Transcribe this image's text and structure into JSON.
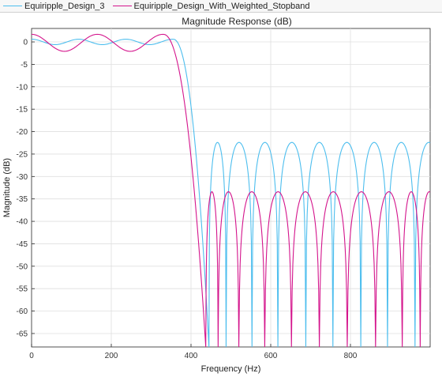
{
  "legend": {
    "items": [
      {
        "label": "Equiripple_Design_3",
        "color": "#4dbeee"
      },
      {
        "label": "Equiripple_Design_With_Weighted_Stopband",
        "color": "#d4148c"
      }
    ]
  },
  "chart_data": {
    "type": "line",
    "title": "Magnitude Response (dB)",
    "xlabel": "Frequency (Hz)",
    "ylabel": "Magnitude (dB)",
    "xlim": [
      0,
      1000
    ],
    "ylim": [
      -68,
      3
    ],
    "xticks": [
      0,
      200,
      400,
      600,
      800
    ],
    "yticks": [
      0,
      -5,
      -10,
      -15,
      -20,
      -25,
      -30,
      -35,
      -40,
      -45,
      -50,
      -55,
      -60,
      -65
    ],
    "grid": true,
    "legend_position": "top",
    "series": [
      {
        "name": "Equiripple_Design_3",
        "color": "#4dbeee",
        "passband": {
          "x0": 0,
          "x1": 355,
          "ripple_peaks": [
            0.6,
            -0.6,
            0.6,
            -0.6,
            0.6,
            -0.6,
            0.6
          ],
          "edge_value": 0.6
        },
        "transition": {
          "x_start": 355,
          "x_end": 445
        },
        "stopband": {
          "nulls": [
            445,
            488,
            553,
            618,
            688,
            756,
            826,
            893,
            962
          ],
          "lobe_peak": -22.4,
          "floor": -68
        }
      },
      {
        "name": "Equiripple_Design_With_Weighted_Stopband",
        "color": "#d4148c",
        "passband": {
          "x0": 0,
          "x1": 330,
          "ripple_peaks": [
            1.7,
            -2.1,
            1.7,
            -2.1,
            1.7
          ],
          "edge_value": 1.7
        },
        "transition": {
          "x_start": 330,
          "x_end": 437
        },
        "stopband": {
          "nulls": [
            437,
            468,
            520,
            585,
            652,
            722,
            792,
            863,
            930,
            975
          ],
          "lobe_peak": -33.4,
          "floor": -68
        }
      }
    ]
  }
}
